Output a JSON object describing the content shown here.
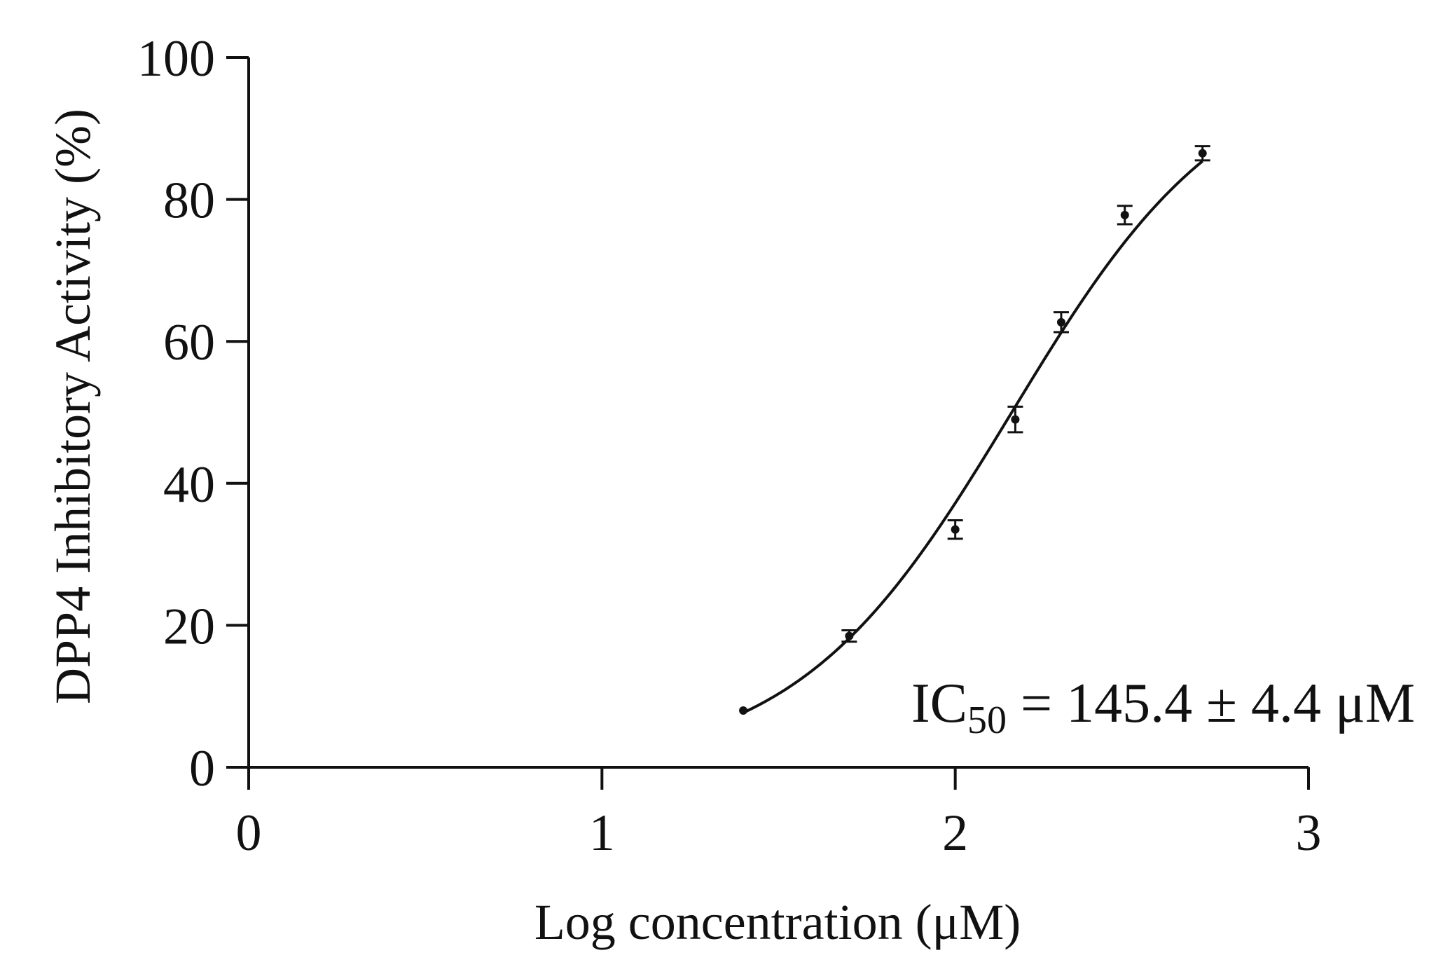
{
  "chart_data": {
    "type": "scatter",
    "title": "",
    "xlabel": "Log concentration (μM)",
    "ylabel": "DPP4 Inhibitory Activity (%)",
    "xlim": [
      0,
      3
    ],
    "ylim": [
      0,
      100
    ],
    "x_ticks": [
      0,
      1,
      2,
      3
    ],
    "y_ticks": [
      0,
      20,
      40,
      60,
      80,
      100
    ],
    "grid": false,
    "legend": "none",
    "color": "#111111",
    "series": [
      {
        "x": [
          1.4,
          1.7,
          2.0,
          2.17,
          2.3,
          2.48,
          2.7
        ],
        "y": [
          8.0,
          18.5,
          33.5,
          49.0,
          62.7,
          77.8,
          86.5
        ],
        "error": [
          0.0,
          0.8,
          1.3,
          1.8,
          1.4,
          1.3,
          1.0
        ]
      }
    ],
    "fit_curve": {
      "type": "sigmoid",
      "x_range": [
        1.4,
        2.7
      ],
      "bottom": 0,
      "top": 100,
      "log_ic50": 2.16,
      "hill_slope": 1.42
    },
    "annotation": {
      "prefix": "IC",
      "subscript": "50",
      "suffix": " = 145.4 ± 4.4 μM"
    }
  }
}
